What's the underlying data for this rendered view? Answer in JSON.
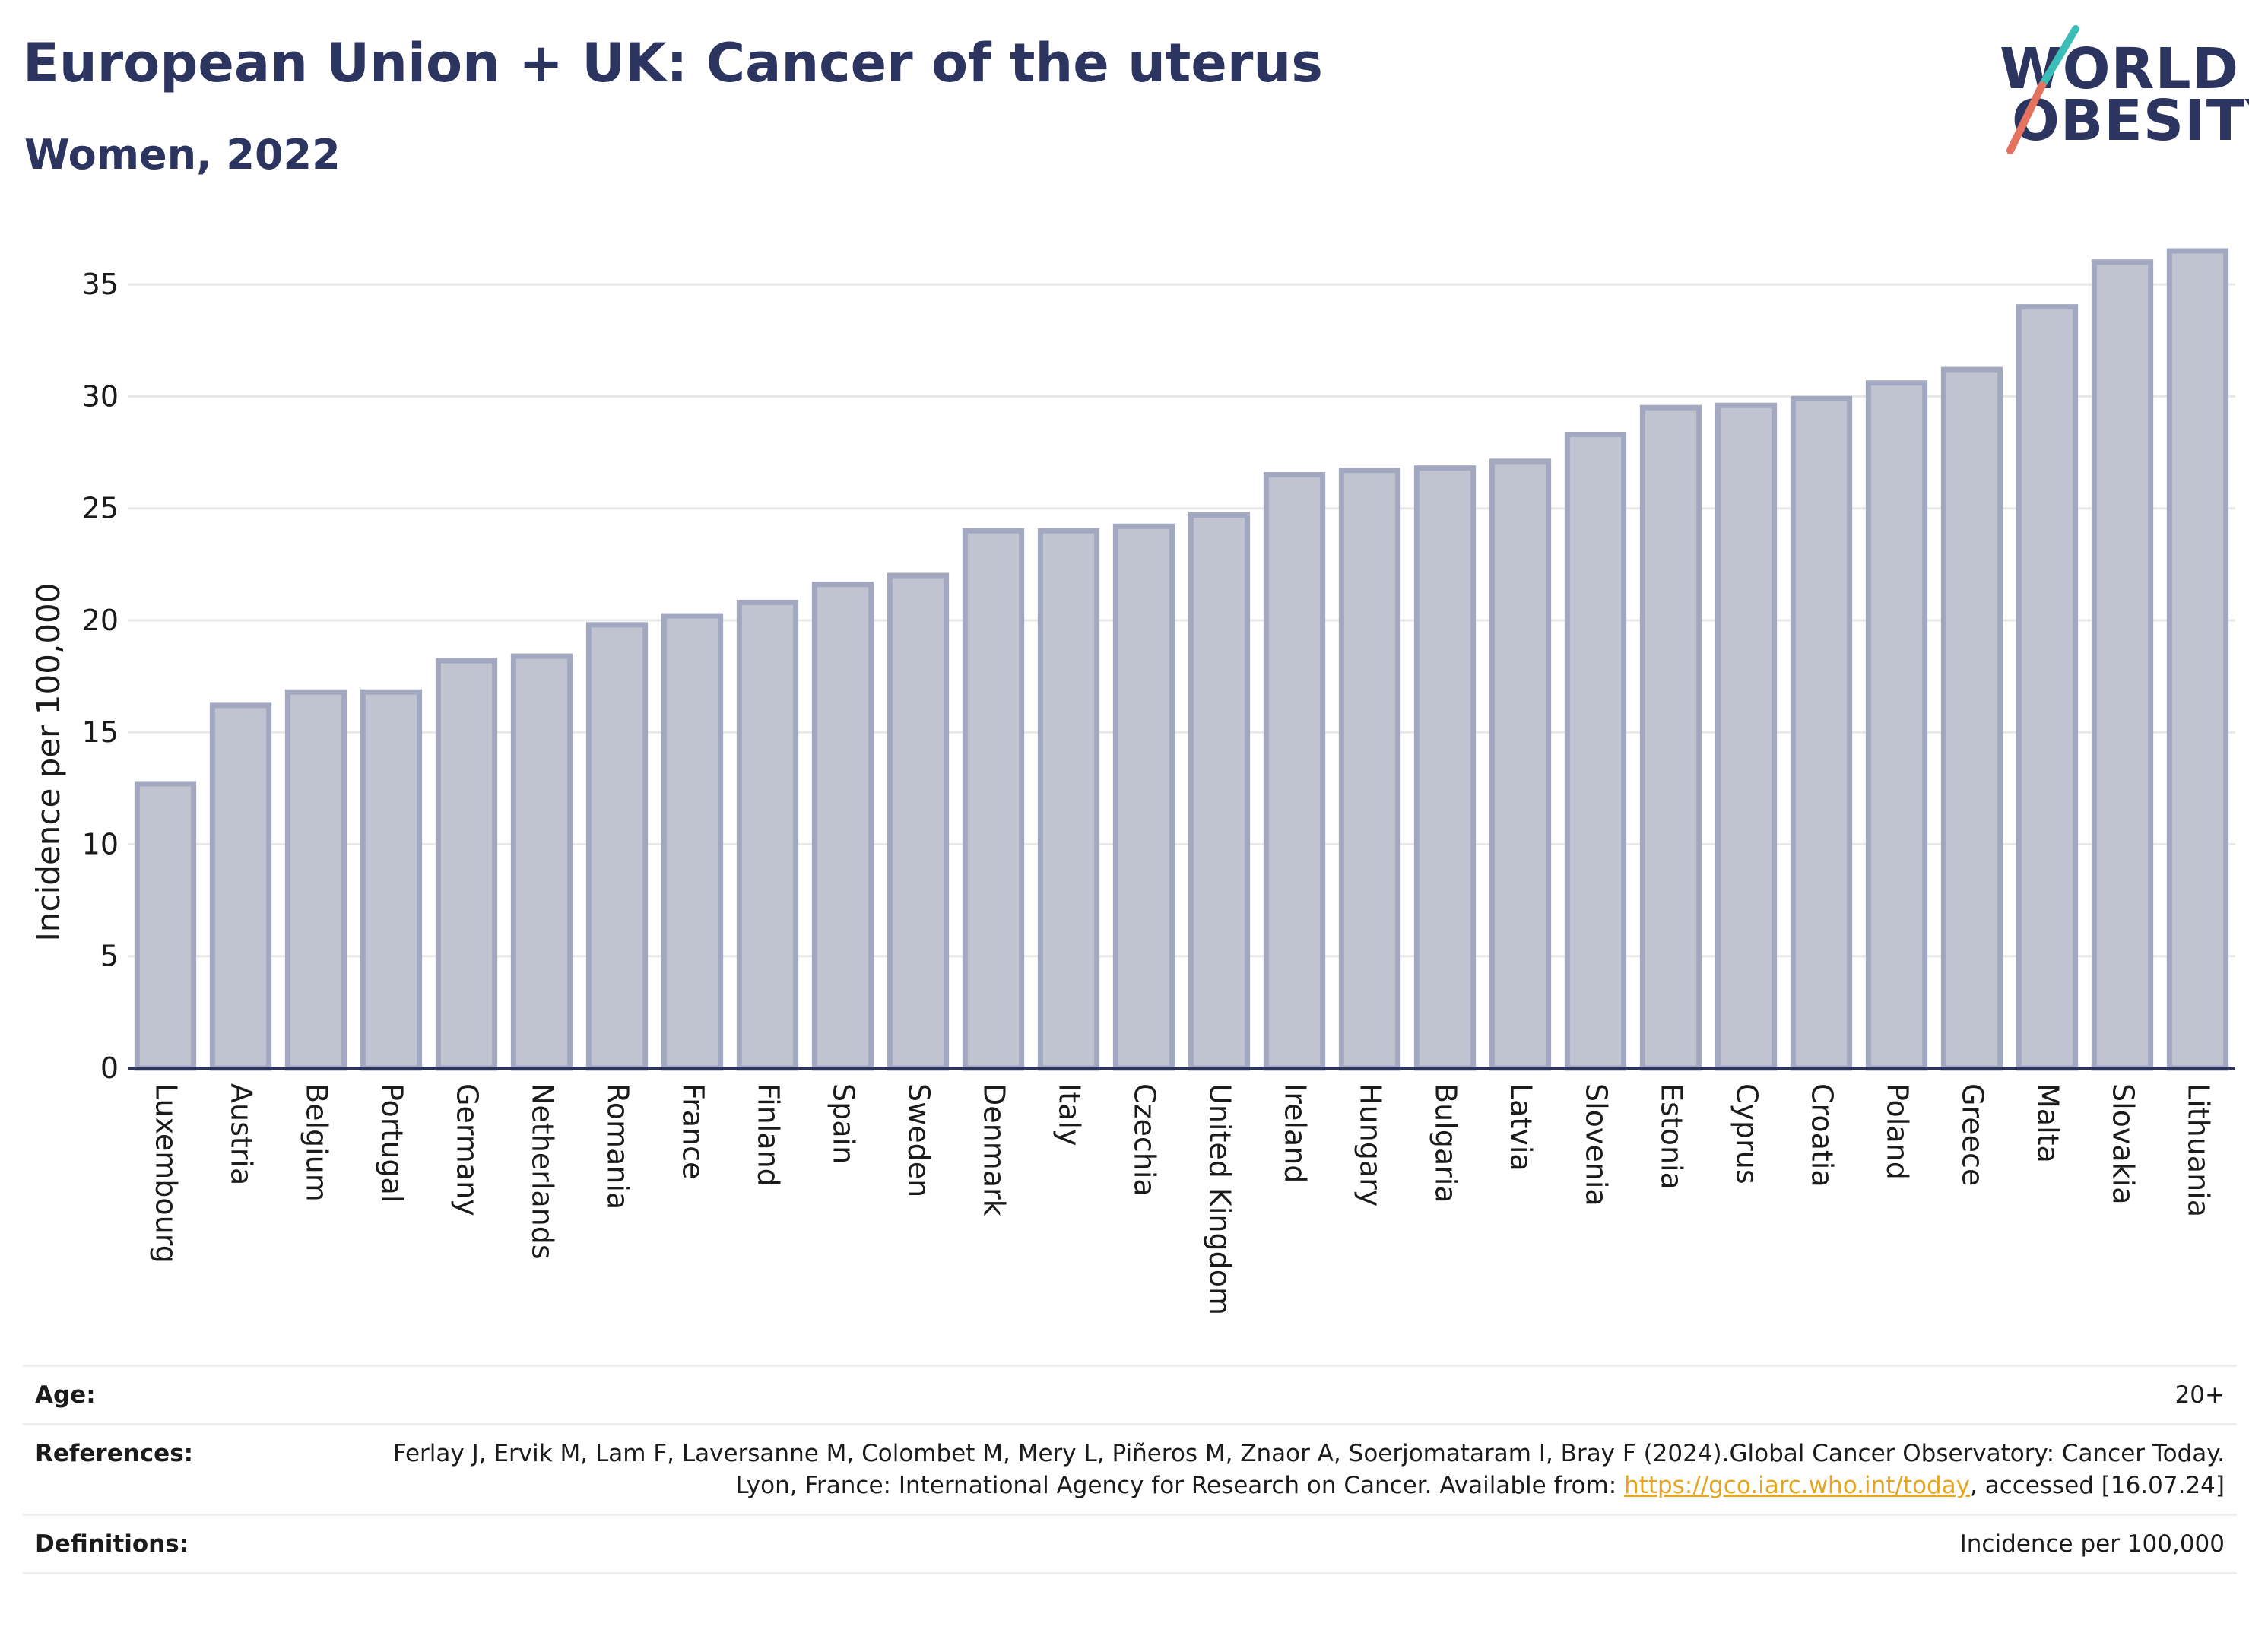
{
  "header": {
    "title": "European Union + UK: Cancer of the uterus",
    "subtitle": "Women, 2022"
  },
  "logo": {
    "line1": "WORLD",
    "line2": "OBESITY",
    "accent_teal": "#3bbdb8",
    "accent_red": "#e3735e"
  },
  "colors": {
    "bar_fill": "#c0c3d0",
    "bar_stroke": "#a2a8c0",
    "axis": "#2b3560",
    "grid": "#e8e8e8"
  },
  "chart_data": {
    "type": "bar",
    "title": "European Union + UK: Cancer of the uterus",
    "subtitle": "Women, 2022",
    "xlabel": "",
    "ylabel": "Incidence per 100,000",
    "ylim": [
      0,
      36.5
    ],
    "yticks": [
      0,
      5,
      10,
      15,
      20,
      25,
      30,
      35
    ],
    "grid": true,
    "categories": [
      "Luxembourg",
      "Austria",
      "Belgium",
      "Portugal",
      "Germany",
      "Netherlands",
      "Romania",
      "France",
      "Finland",
      "Spain",
      "Sweden",
      "Denmark",
      "Italy",
      "Czechia",
      "United Kingdom",
      "Ireland",
      "Hungary",
      "Bulgaria",
      "Latvia",
      "Slovenia",
      "Estonia",
      "Cyprus",
      "Croatia",
      "Poland",
      "Greece",
      "Malta",
      "Slovakia",
      "Lithuania"
    ],
    "values": [
      12.7,
      16.2,
      16.8,
      16.8,
      18.2,
      18.4,
      19.8,
      20.2,
      20.8,
      21.6,
      22.0,
      24.0,
      24.0,
      24.2,
      24.7,
      26.5,
      26.7,
      26.8,
      27.1,
      28.3,
      29.5,
      29.6,
      29.9,
      30.6,
      31.2,
      34.0,
      36.0,
      36.5
    ]
  },
  "footer": {
    "age_label": "Age:",
    "age_value": "20+",
    "references_label": "References:",
    "references_text": "Ferlay J, Ervik M, Lam F, Laversanne M, Colombet M, Mery L, Piñeros M, Znaor A, Soerjomataram I, Bray F (2024).Global Cancer Observatory: Cancer Today. Lyon, France: International Agency for Research on Cancer. Available from: ",
    "references_link": "https://gco.iarc.who.int/today",
    "references_suffix": ", accessed [16.07.24]",
    "definitions_label": "Definitions:",
    "definitions_value": "Incidence per 100,000"
  }
}
